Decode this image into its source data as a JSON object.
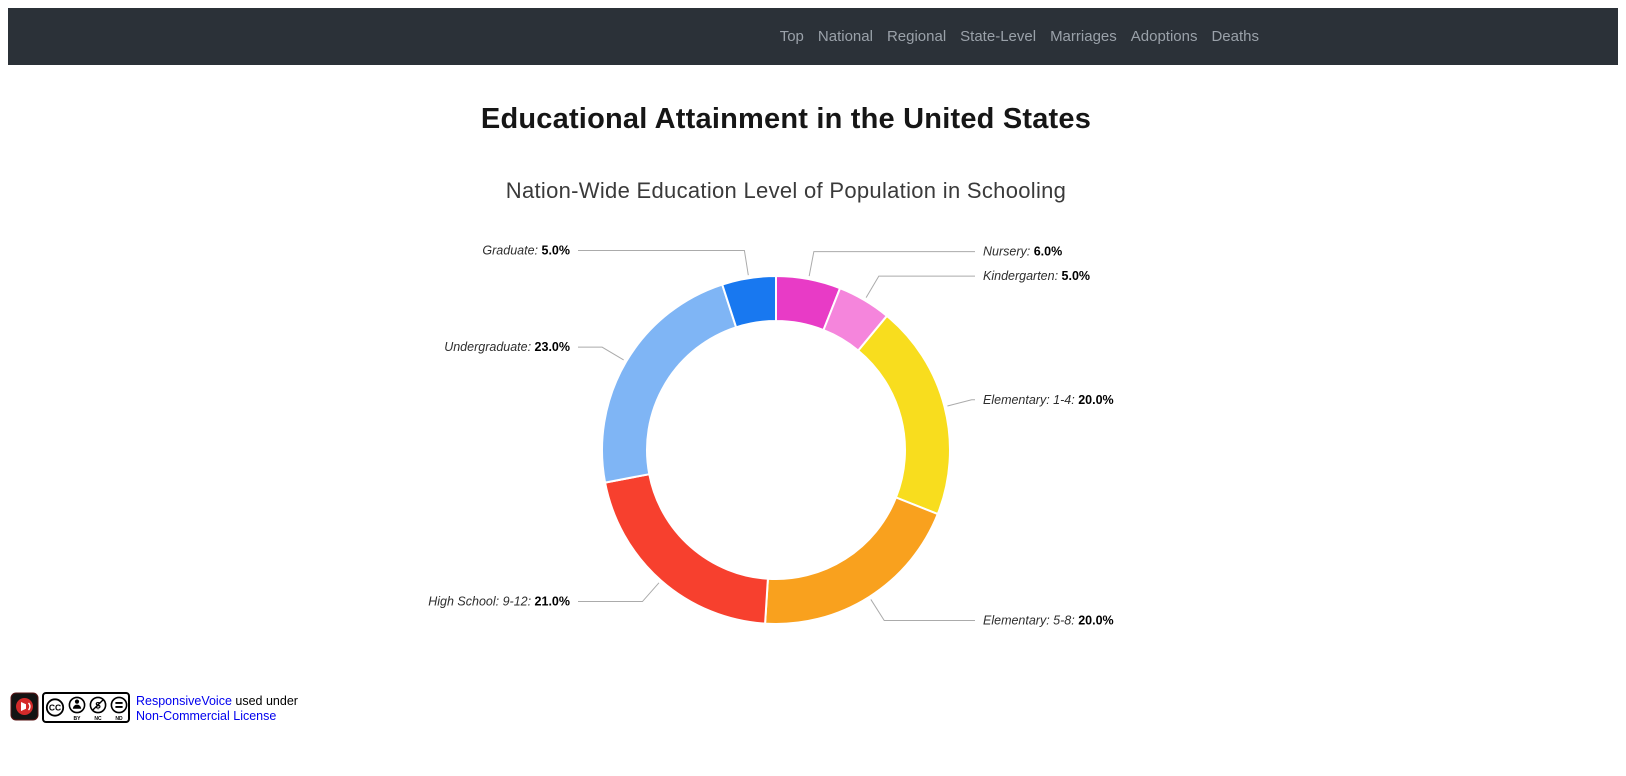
{
  "nav": {
    "items": [
      "Top",
      "National",
      "Regional",
      "State-Level",
      "Marriages",
      "Adoptions",
      "Deaths"
    ],
    "background_color": "#2B3138",
    "link_color": "#9AA1A9"
  },
  "page": {
    "title": "Educational Attainment in the United States"
  },
  "chart_data": {
    "type": "pie",
    "subtype": "donut",
    "title": "Nation-Wide Education Level of Population in Schooling",
    "series": [
      {
        "name": "Nursery",
        "value": 6.0,
        "color": "#E83BC6"
      },
      {
        "name": "Kindergarten",
        "value": 5.0,
        "color": "#F585DC"
      },
      {
        "name": "Elementary: 1-4",
        "value": 20.0,
        "color": "#F8DD1E"
      },
      {
        "name": "Elementary: 5-8",
        "value": 20.0,
        "color": "#F9A11E"
      },
      {
        "name": "High School: 9-12",
        "value": 21.0,
        "color": "#F7402E"
      },
      {
        "name": "Undergraduate",
        "value": 23.0,
        "color": "#7FB5F5"
      },
      {
        "name": "Graduate",
        "value": 5.0,
        "color": "#1878F0"
      }
    ],
    "start_angle_deg": 0,
    "direction": "clockwise",
    "inner_radius_ratio": 0.74,
    "value_suffix": "%",
    "label_format": "{name}: {value}%",
    "legend": "none",
    "connector_color": "#ABABAB"
  },
  "footer": {
    "responsivevoice_link": "ResponsiveVoice",
    "used_under_text": " used under",
    "license_link": "Non-Commercial License",
    "cc_badge": "CC BY-NC-ND",
    "link_color": "#0000EE"
  }
}
